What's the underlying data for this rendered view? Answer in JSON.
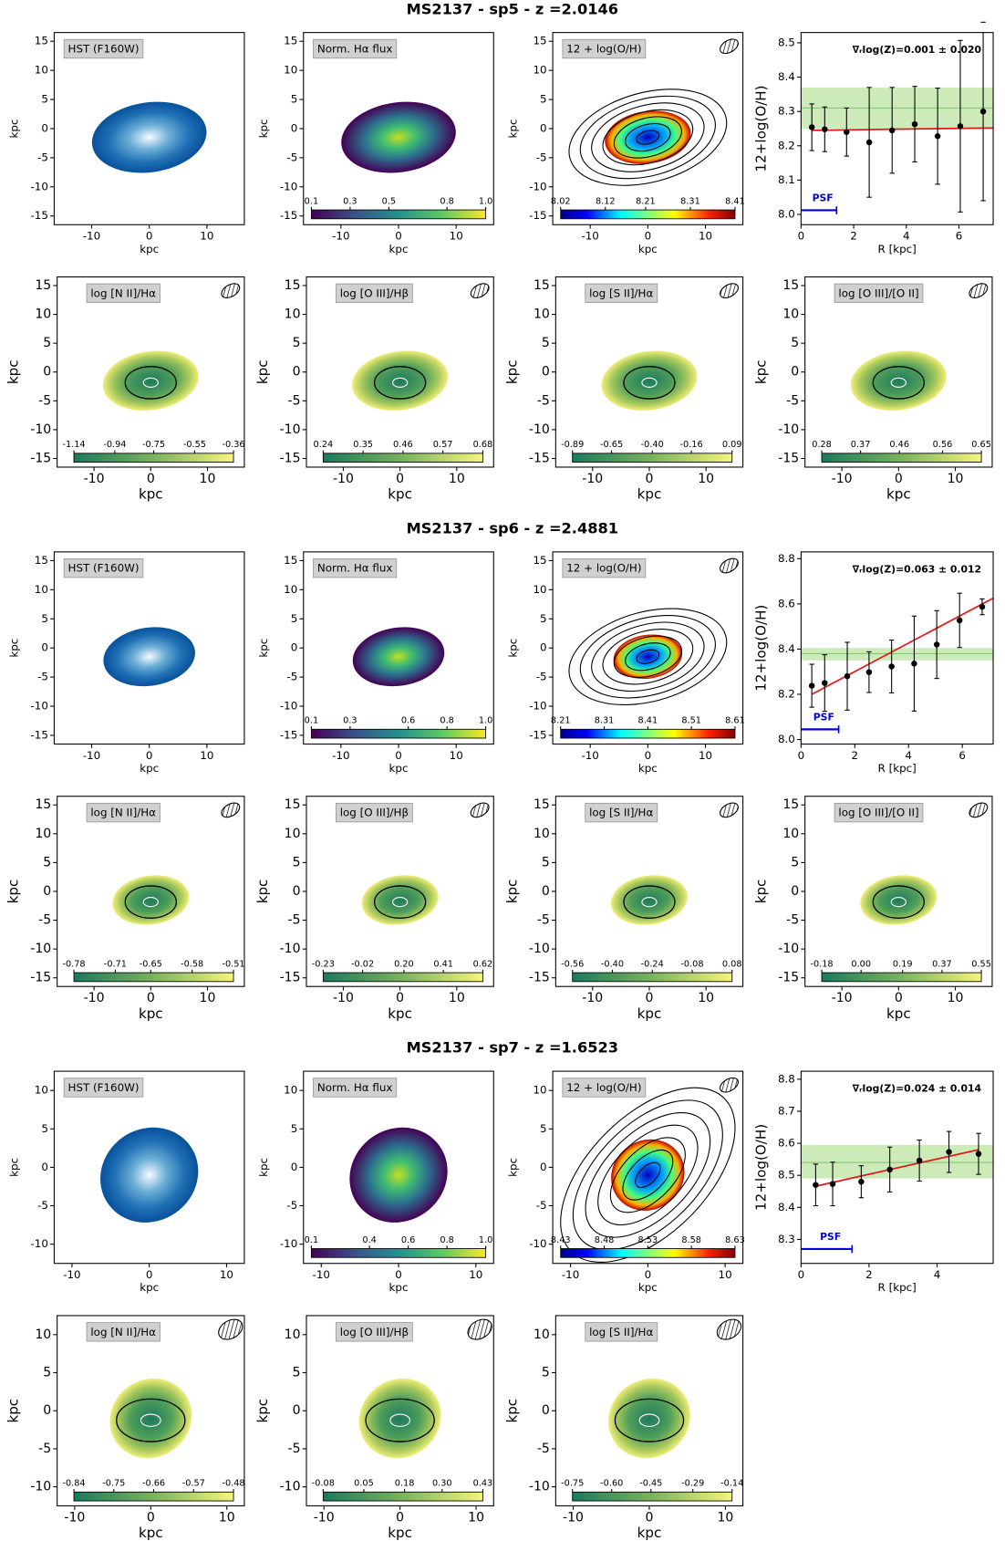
{
  "sections": [
    {
      "title": "MS2137 - sp5 - z =2.0146",
      "map_axes": {
        "xlim": [
          -16.5,
          16.5
        ],
        "ylim": [
          -16.5,
          16.5
        ],
        "xticks": [
          -10,
          0,
          10
        ],
        "yticks": [
          -15,
          -10,
          -5,
          0,
          5,
          10,
          15
        ],
        "xlabel": "kpc",
        "ylabel": "kpc"
      },
      "maps": [
        {
          "label": "HST (F160W)"
        },
        {
          "label": "Norm. Hα flux",
          "cbar_ticks": [
            0.1,
            0.3,
            0.5,
            0.8,
            {
              "value": 1,
              "label": "1.0"
            }
          ]
        },
        {
          "label": "12 + log(O/H)",
          "cbar_ticks": [
            8.02,
            8.12,
            8.21,
            8.31,
            8.41
          ]
        },
        {
          "label": "log [N II]/Hα",
          "cbar_ticks": [
            -1.14,
            -0.94,
            -0.75,
            -0.55,
            -0.36
          ]
        },
        {
          "label": "log [O III]/Hβ",
          "cbar_ticks": [
            0.24,
            0.35,
            0.46,
            0.57,
            0.68
          ]
        },
        {
          "label": "log [S II]/Hα",
          "cbar_ticks": [
            -0.89,
            -0.65,
            {
              "value": -0.4,
              "label": "-0.40"
            },
            -0.16,
            0.09
          ]
        },
        {
          "label": "log [O III]/[O II]",
          "cbar_ticks": [
            0.28,
            0.37,
            0.46,
            0.56,
            0.65
          ]
        }
      ],
      "gradient": {
        "annotation": "∇ᵣlog(Z)=0.001 ± 0.020",
        "xlabel": "R [kpc]",
        "ylabel": "12+log(O/H)",
        "xlim": [
          0,
          7.3
        ],
        "ylim": [
          7.97,
          8.53
        ],
        "xticks": [
          0,
          2,
          4,
          6
        ],
        "yticks": [
          {
            "value": 8,
            "label": "8.0"
          },
          8.1,
          8.2,
          8.3,
          8.4,
          8.5
        ],
        "x": [
          0.41,
          0.9,
          1.73,
          2.59,
          3.46,
          4.32,
          5.19,
          6.05,
          6.92
        ],
        "values": [
          8.254,
          8.248,
          8.24,
          8.21,
          8.245,
          8.263,
          8.228,
          8.257,
          8.3
        ],
        "errors": [
          0.068,
          0.065,
          0.07,
          0.16,
          0.125,
          0.11,
          0.14,
          0.25,
          0.26
        ],
        "fit_x": [
          0.41,
          7.3
        ],
        "fit_y": [
          8.245,
          8.252
        ],
        "band_center": 8.31,
        "band_range": [
          8.25,
          8.37
        ],
        "psf_label": "PSF",
        "psf_x": [
          0,
          1.35
        ],
        "psf_y": 8.012,
        "point_color": "#000000",
        "fit_color": "#e8161b",
        "band_color": "#bfe6a8",
        "psf_color": "#0000e0"
      }
    },
    {
      "title": "MS2137 - sp6 - z =2.4881",
      "map_axes": {
        "xlim": [
          -16.5,
          16.5
        ],
        "ylim": [
          -16.5,
          16.5
        ],
        "xticks": [
          -10,
          0,
          10
        ],
        "yticks": [
          -15,
          -10,
          -5,
          0,
          5,
          10,
          15
        ],
        "xlabel": "kpc",
        "ylabel": "kpc"
      },
      "maps": [
        {
          "label": "HST (F160W)"
        },
        {
          "label": "Norm. Hα flux",
          "cbar_ticks": [
            0.1,
            0.3,
            0.6,
            0.8,
            {
              "value": 1,
              "label": "1.0"
            }
          ]
        },
        {
          "label": "12 + log(O/H)",
          "cbar_ticks": [
            8.21,
            8.31,
            8.41,
            8.51,
            8.61
          ]
        },
        {
          "label": "log [N II]/Hα",
          "cbar_ticks": [
            -0.78,
            -0.71,
            -0.65,
            -0.58,
            -0.51
          ]
        },
        {
          "label": "log [O III]/Hβ",
          "cbar_ticks": [
            -0.23,
            -0.02,
            {
              "value": 0.2,
              "label": "0.20"
            },
            0.41,
            0.62
          ]
        },
        {
          "label": "log [S II]/Hα",
          "cbar_ticks": [
            -0.56,
            {
              "value": -0.4,
              "label": "-0.40"
            },
            -0.24,
            -0.08,
            0.08
          ]
        },
        {
          "label": "log [O III]/[O II]",
          "cbar_ticks": [
            -0.18,
            {
              "value": 0,
              "label": "0.00"
            },
            0.19,
            0.37,
            0.55
          ]
        }
      ],
      "gradient": {
        "annotation": "∇ᵣlog(Z)=0.063 ± 0.012",
        "xlabel": "R [kpc]",
        "ylabel": "12+log(O/H)",
        "xlim": [
          0,
          7.15
        ],
        "ylim": [
          7.98,
          8.83
        ],
        "xticks": [
          0,
          2,
          4,
          6
        ],
        "yticks": [
          {
            "value": 8,
            "label": "8.0"
          },
          8.2,
          8.4,
          8.6,
          8.8
        ],
        "x": [
          0.4,
          0.88,
          1.72,
          2.53,
          3.37,
          4.21,
          5.05,
          5.9,
          6.74
        ],
        "values": [
          8.238,
          8.25,
          8.28,
          8.298,
          8.323,
          8.336,
          8.42,
          8.527,
          8.587
        ],
        "errors": [
          0.095,
          0.125,
          0.15,
          0.09,
          0.117,
          0.21,
          0.15,
          0.12,
          0.035
        ],
        "fit_x": [
          0.4,
          7.15
        ],
        "fit_y": [
          8.2,
          8.625
        ],
        "band_center": 8.38,
        "band_range": [
          8.35,
          8.405
        ],
        "psf_label": "PSF",
        "psf_x": [
          0,
          1.4
        ],
        "psf_y": 8.045,
        "point_color": "#000000",
        "fit_color": "#e8161b",
        "band_color": "#bfe6a8",
        "psf_color": "#0000e0"
      }
    },
    {
      "title": "MS2137 - sp7 - z =1.6523",
      "map_axes": {
        "xlim": [
          -12.3,
          12.3
        ],
        "ylim": [
          -12.5,
          12.5
        ],
        "xticks": [
          -10,
          0,
          10
        ],
        "yticks": [
          -10,
          -5,
          0,
          5,
          10
        ],
        "xlabel": "kpc",
        "ylabel": "kpc"
      },
      "maps": [
        {
          "label": "HST (F160W)"
        },
        {
          "label": "Norm. Hα flux",
          "cbar_ticks": [
            0.1,
            0.4,
            0.6,
            0.8,
            {
              "value": 1,
              "label": "1.0"
            }
          ]
        },
        {
          "label": "12 + log(O/H)",
          "cbar_ticks": [
            8.43,
            8.48,
            8.53,
            8.58,
            8.63
          ]
        },
        {
          "label": "log [N II]/Hα",
          "cbar_ticks": [
            -0.84,
            -0.75,
            -0.66,
            -0.57,
            -0.48
          ]
        },
        {
          "label": "log [O III]/Hβ",
          "cbar_ticks": [
            -0.08,
            0.05,
            0.18,
            {
              "value": 0.3,
              "label": "0.30"
            },
            0.43
          ]
        },
        {
          "label": "log [S II]/Hα",
          "cbar_ticks": [
            -0.75,
            {
              "value": -0.6,
              "label": "-0.60"
            },
            -0.45,
            -0.29,
            -0.14
          ]
        }
      ],
      "gradient": {
        "annotation": "∇ᵣlog(Z)=0.024 ± 0.014",
        "xlabel": "R [kpc]",
        "ylabel": "12+log(O/H)",
        "xlim": [
          0,
          5.65
        ],
        "ylim": [
          8.225,
          8.825
        ],
        "xticks": [
          0,
          2,
          4
        ],
        "yticks": [
          8.3,
          8.4,
          8.5,
          8.6,
          8.7,
          8.8
        ],
        "x": [
          0.43,
          0.93,
          1.77,
          2.61,
          3.48,
          4.35,
          5.22
        ],
        "values": [
          8.47,
          8.473,
          8.48,
          8.518,
          8.546,
          8.573,
          8.567
        ],
        "errors": [
          0.065,
          0.068,
          0.05,
          0.07,
          0.064,
          0.064,
          0.064
        ],
        "fit_x": [
          0.43,
          5.22
        ],
        "fit_y": [
          8.466,
          8.58
        ],
        "band_center": 8.54,
        "band_range": [
          8.49,
          8.595
        ],
        "psf_label": "PSF",
        "psf_x": [
          0,
          1.5
        ],
        "psf_y": 8.27,
        "point_color": "#000000",
        "fit_color": "#e8161b",
        "band_color": "#bfe6a8",
        "psf_color": "#0000e0"
      }
    }
  ]
}
